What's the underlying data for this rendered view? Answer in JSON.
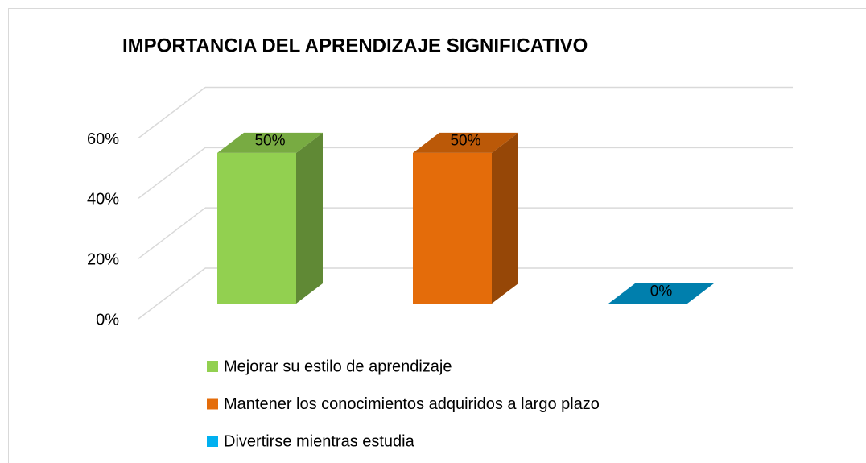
{
  "chart_data": {
    "type": "bar3d",
    "title": "IMPORTANCIA DEL APRENDIZAJE SIGNIFICATIVO",
    "categories": [
      "Mejorar su estilo de aprendizaje",
      "Mantener los conocimientos adquiridos a largo plazo",
      "Divertirse mientras estudia"
    ],
    "values": [
      50,
      50,
      0
    ],
    "value_labels": [
      "50%",
      "50%",
      "0%"
    ],
    "colors": [
      "#92d050",
      "#e46c0a",
      "#00b0f0"
    ],
    "ylim": [
      0,
      60
    ],
    "yticks": [
      {
        "value": 0,
        "label": "0%"
      },
      {
        "value": 20,
        "label": "20%"
      },
      {
        "value": 40,
        "label": "40%"
      },
      {
        "value": 60,
        "label": "60%"
      }
    ],
    "grid": true
  }
}
